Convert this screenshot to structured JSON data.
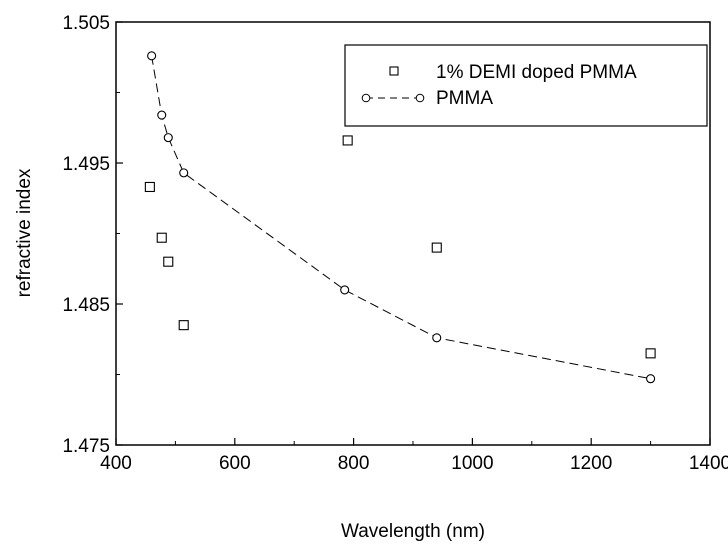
{
  "chart_data": {
    "type": "scatter",
    "xlabel": "Wavelength (nm)",
    "ylabel": "refractive index",
    "xlim": [
      400,
      1400
    ],
    "ylim": [
      1.475,
      1.505
    ],
    "xticks": [
      "400",
      "600",
      "800",
      "1000",
      "1200",
      "1400"
    ],
    "yticks": [
      "1.475",
      "1.485",
      "1.495",
      "1.505"
    ],
    "grid": false,
    "legend_position": "top-right",
    "series": [
      {
        "name": "1% DEMI doped PMMA",
        "marker": "square",
        "line": "none",
        "x": [
          457,
          477,
          488,
          514,
          790,
          940,
          1300
        ],
        "y": [
          1.4933,
          1.4897,
          1.488,
          1.4835,
          1.4966,
          1.489,
          1.4815
        ]
      },
      {
        "name": "PMMA",
        "marker": "circle",
        "line": "dashed",
        "x": [
          460,
          477,
          488,
          514,
          785,
          940,
          1300
        ],
        "y": [
          1.5026,
          1.4984,
          1.4968,
          1.4943,
          1.486,
          1.4826,
          1.4797
        ]
      }
    ]
  }
}
